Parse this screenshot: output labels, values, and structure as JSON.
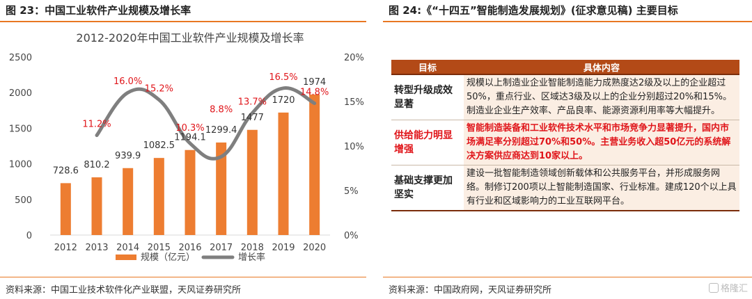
{
  "left": {
    "figure_title": "图 23：中国工业软件产业规模及增长率",
    "source": "资料来源：中国工业技术软件化产业联盟，天风证券研究所"
  },
  "right": {
    "figure_title": "图 24:《“十四五”智能制造发展规划》(征求意见稿) 主要目标",
    "source": "资料来源：中国政府网，天风证券研究所",
    "table": {
      "headers": [
        "目标",
        "具体内容"
      ],
      "rows": [
        {
          "goal": "转型升级成效显著",
          "content": "规模以上制造业企业智能制造能力成熟度达2级及以上的企业超过50%，重点行业、区域达3级及以上的企业分别超过20%和15%。制造业企业生产效率、产品良率、能源资源利用率等大幅提升。",
          "highlight": false
        },
        {
          "goal": "供给能力明显增强",
          "content": "智能制造装备和工业软件技术水平和市场竞争力显著提升，国内市场满足率分别超过70%和50%。主营业务收入超50亿元的系统解决方案供应商达到10家以上。",
          "highlight": true
        },
        {
          "goal": "基础支撑更加坚实",
          "content": "建设一批智能制造领域创新载体和公共服务平台，并形成服务网络。制修订200项以上智能制造国家、行业标准。建成120个以上具有行业和区域影响力的工业互联网平台。",
          "highlight": false
        }
      ]
    },
    "watermark": "格隆汇"
  },
  "colors": {
    "accent": "#e87722",
    "bar": "#ed7d31",
    "line": "#7f7f7f",
    "rate_label": "#e0151a",
    "table_header": "#b34a17"
  },
  "chart_data": {
    "type": "bar",
    "title": "2012-2020年中国工业软件产业规模及增长率",
    "categories": [
      "2012",
      "2013",
      "2014",
      "2015",
      "2016",
      "2017",
      "2018",
      "2019",
      "2020"
    ],
    "series": [
      {
        "name": "规模（亿元）",
        "type": "bar",
        "axis": "left",
        "values": [
          728.6,
          810.2,
          939.9,
          1082.5,
          1194.1,
          1299.4,
          1477,
          1720,
          1974
        ]
      },
      {
        "name": "增长率",
        "type": "line",
        "axis": "right",
        "values": [
          null,
          11.2,
          16.0,
          15.2,
          10.3,
          8.8,
          13.7,
          16.5,
          14.8
        ]
      }
    ],
    "bar_labels": [
      "728.6",
      "810.2",
      "939.9",
      "1082.5",
      "1194.1",
      "1299.4",
      "1477",
      "1720",
      "1974"
    ],
    "line_labels": [
      "",
      "11.2%",
      "16.0%",
      "15.2%",
      "10.3%",
      "8.8%",
      "13.7%",
      "16.5%",
      "14.8%"
    ],
    "ylim_left": [
      0,
      2500
    ],
    "yticks_left": [
      "0",
      "500",
      "1000",
      "1500",
      "2000",
      "2500"
    ],
    "ylim_right": [
      0,
      20
    ],
    "yticks_right": [
      "0%",
      "5%",
      "10%",
      "15%",
      "20%"
    ],
    "grid": false,
    "legend_position": "bottom"
  }
}
